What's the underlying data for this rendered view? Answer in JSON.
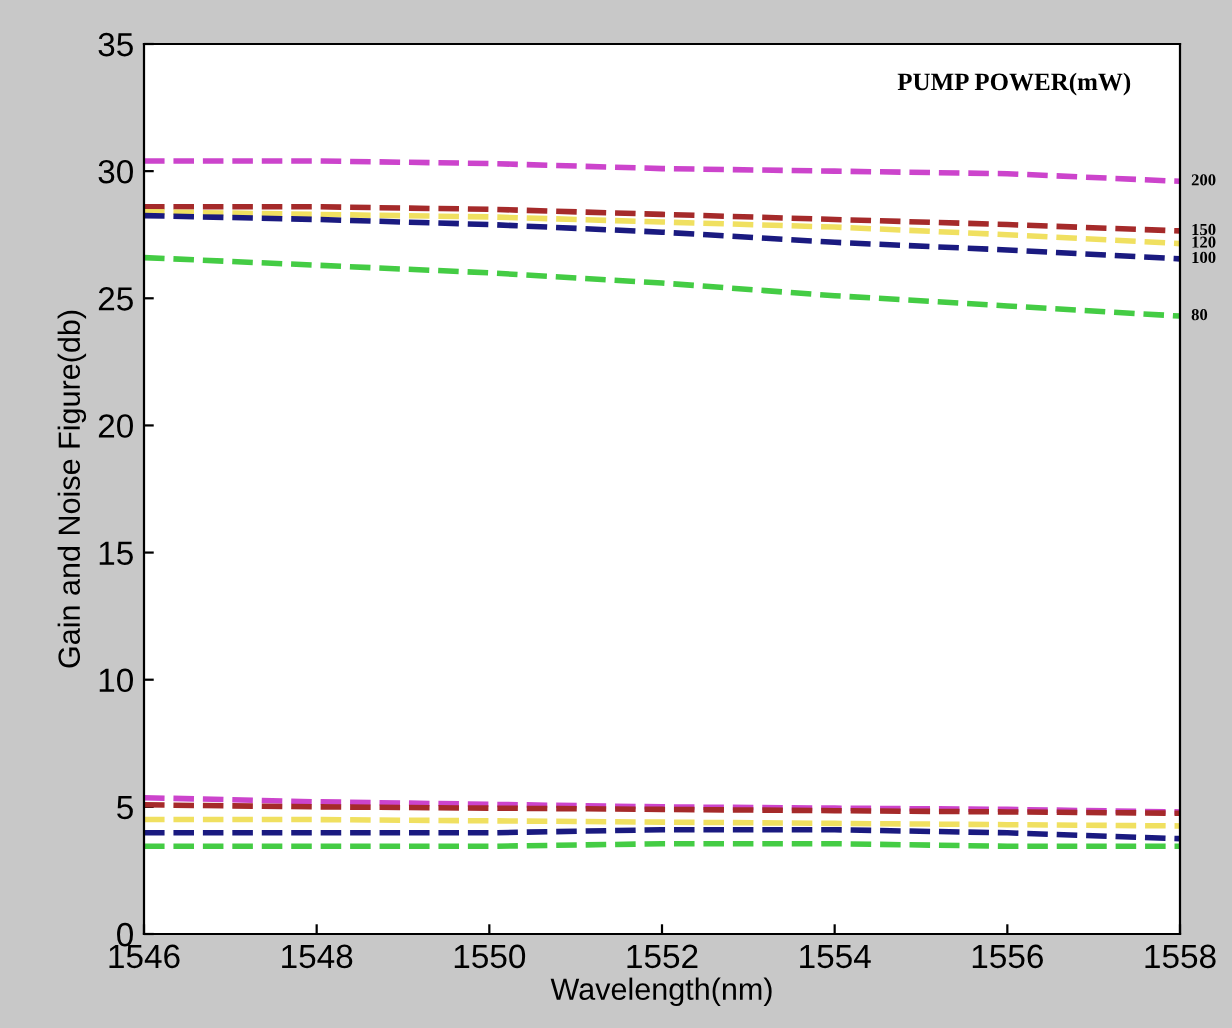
{
  "chart_data": {
    "type": "line",
    "xlabel": "Wavelength(nm)",
    "ylabel": "Gain and Noise Figure(db)",
    "x": [
      1546,
      1548,
      1550,
      1552,
      1554,
      1556,
      1558
    ],
    "xlim": [
      1546,
      1558
    ],
    "xticks": [
      1546,
      1548,
      1550,
      1552,
      1554,
      1556,
      1558
    ],
    "ylim": [
      0,
      35
    ],
    "yticks": [
      0,
      5,
      10,
      15,
      20,
      25,
      30,
      35
    ],
    "grid": false,
    "legend": false,
    "line_style": "dashed",
    "marker": "none",
    "annotations": [
      "PUMP POWER(mW)"
    ],
    "series": [
      {
        "name": "200",
        "color": "#cc44cc",
        "values": [
          30.4,
          30.4,
          30.3,
          30.1,
          30.0,
          29.9,
          29.6
        ]
      },
      {
        "name": "150",
        "color": "#a52a2a",
        "values": [
          28.6,
          28.6,
          28.5,
          28.3,
          28.1,
          27.9,
          27.65
        ]
      },
      {
        "name": "120",
        "color": "#f0e060",
        "values": [
          28.4,
          28.3,
          28.2,
          28.0,
          27.8,
          27.5,
          27.15
        ]
      },
      {
        "name": "100",
        "color": "#1a1a80",
        "values": [
          28.25,
          28.1,
          27.9,
          27.6,
          27.2,
          26.9,
          26.55
        ]
      },
      {
        "name": "80",
        "color": "#44cc44",
        "values": [
          26.6,
          26.3,
          26.0,
          25.6,
          25.1,
          24.7,
          24.3
        ]
      },
      {
        "color": "#cc44cc",
        "values": [
          5.36,
          5.2,
          5.1,
          5.0,
          4.95,
          4.9,
          4.8
        ]
      },
      {
        "color": "#a52a2a",
        "values": [
          5.08,
          5.0,
          4.95,
          4.9,
          4.85,
          4.8,
          4.75
        ]
      },
      {
        "color": "#f0e060",
        "values": [
          4.5,
          4.5,
          4.45,
          4.4,
          4.35,
          4.3,
          4.25
        ]
      },
      {
        "color": "#1a1a80",
        "values": [
          3.98,
          3.98,
          3.98,
          4.1,
          4.1,
          3.98,
          3.75
        ]
      },
      {
        "color": "#44cc44",
        "values": [
          3.45,
          3.45,
          3.45,
          3.55,
          3.55,
          3.45,
          3.45
        ]
      }
    ]
  }
}
